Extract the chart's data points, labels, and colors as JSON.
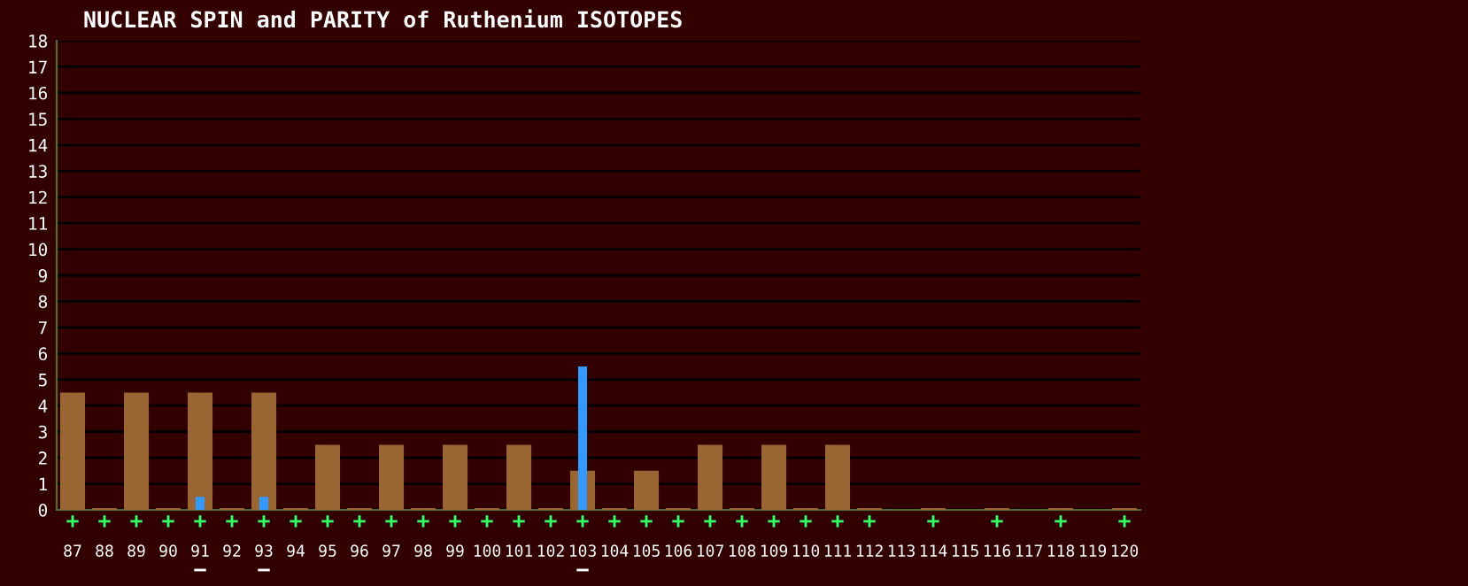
{
  "chart_data": {
    "type": "bar",
    "title": "NUCLEAR SPIN and PARITY of Ruthenium ISOTOPES",
    "categories": [
      "87",
      "88",
      "89",
      "90",
      "91",
      "92",
      "93",
      "94",
      "95",
      "96",
      "97",
      "98",
      "99",
      "100",
      "101",
      "102",
      "103",
      "104",
      "105",
      "106",
      "107",
      "108",
      "109",
      "110",
      "111",
      "112",
      "113",
      "114",
      "115",
      "116",
      "117",
      "118",
      "119",
      "120"
    ],
    "series": [
      {
        "color": "#996633",
        "values": [
          4.5,
          0,
          4.5,
          0,
          4.5,
          0,
          4.5,
          0,
          2.5,
          0,
          2.5,
          0,
          2.5,
          0,
          2.5,
          0,
          1.5,
          0,
          1.5,
          0,
          2.5,
          0,
          2.5,
          0,
          2.5,
          0,
          null,
          0,
          null,
          0,
          null,
          0,
          null,
          0
        ],
        "value_labels": [
          "+",
          "+",
          "+",
          "+",
          "+",
          "+",
          "+",
          "+",
          "+",
          "+",
          "+",
          "+",
          "+",
          "+",
          "+",
          "+",
          "+",
          "+",
          "+",
          "+",
          "+",
          "+",
          "+",
          "+",
          "+",
          "+",
          null,
          "+",
          null,
          "+",
          null,
          "+",
          null,
          "+"
        ]
      },
      {
        "color": "#3399ff",
        "values": [
          null,
          null,
          null,
          null,
          0.5,
          null,
          0.5,
          null,
          null,
          null,
          null,
          null,
          null,
          null,
          null,
          null,
          5.5,
          null,
          null,
          null,
          null,
          null,
          null,
          null,
          null,
          null,
          null,
          null,
          null,
          null,
          null,
          null,
          null,
          null
        ],
        "value_labels": [
          null,
          null,
          null,
          null,
          "−",
          null,
          "−",
          null,
          null,
          null,
          null,
          null,
          null,
          null,
          null,
          null,
          "−",
          null,
          null,
          null,
          null,
          null,
          null,
          null,
          null,
          null,
          null,
          null,
          null,
          null,
          null,
          null,
          null,
          null
        ]
      }
    ],
    "ylim": [
      0,
      18
    ],
    "yticks": [
      0,
      1,
      2,
      3,
      4,
      5,
      6,
      7,
      8,
      9,
      10,
      11,
      12,
      13,
      14,
      15,
      16,
      17,
      18
    ],
    "grid": "y",
    "legend": false
  }
}
